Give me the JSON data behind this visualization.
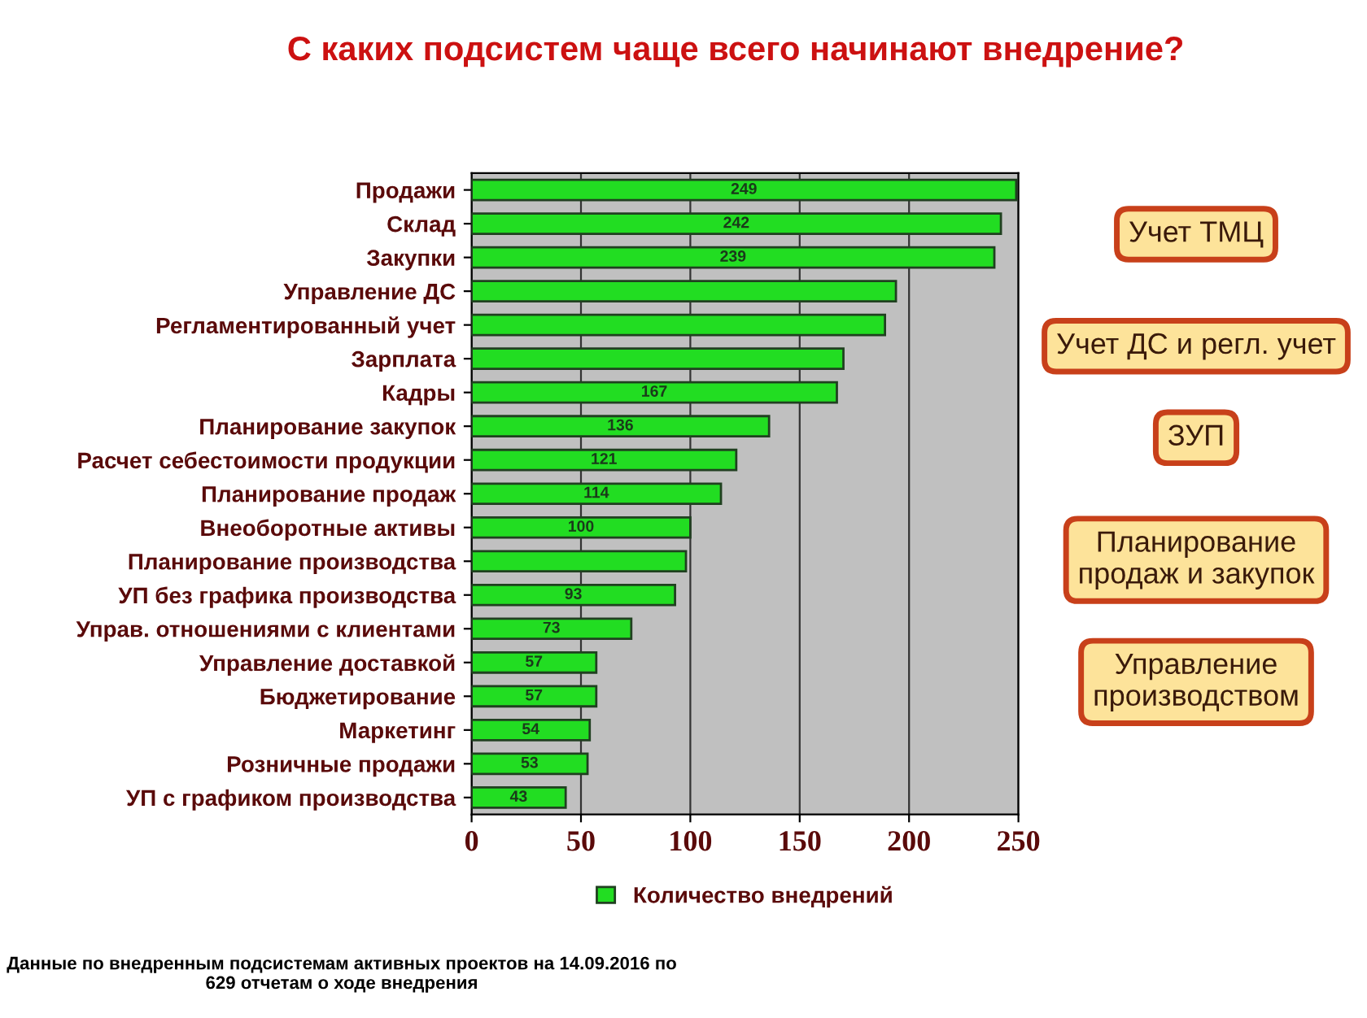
{
  "chart_data": {
    "type": "bar",
    "orientation": "horizontal",
    "title": "С каких подсистем чаще всего начинают внедрение?",
    "categories": [
      "Продажи",
      "Склад",
      "Закупки",
      "Управление ДС",
      "Регламентированный учет",
      "Зарплата",
      "Кадры",
      "Планирование закупок",
      "Расчет себестоимости продукции",
      "Планирование продаж",
      "Внеоборотные активы",
      "Планирование производства",
      "УП без графика производства",
      "Управ. отношениями с клиентами",
      "Управление доставкой",
      "Бюджетирование",
      "Маркетинг",
      "Розничные продажи",
      "УП с графиком производства"
    ],
    "series": [
      {
        "name": "Количество внедрений",
        "color": "#22dd22",
        "values": [
          249,
          242,
          239,
          194,
          189,
          170,
          167,
          136,
          121,
          114,
          100,
          98,
          93,
          73,
          57,
          57,
          54,
          53,
          43
        ],
        "value_labels": [
          "249",
          "242",
          "239",
          null,
          null,
          null,
          "167",
          "136",
          "121",
          "114",
          "100",
          null,
          "93",
          "73",
          "57",
          "57",
          "54",
          "53",
          "43"
        ]
      }
    ],
    "xlim": [
      0,
      250
    ],
    "xticks": [
      0,
      50,
      100,
      150,
      200,
      250
    ],
    "grid": "x",
    "legend": "bottom",
    "annotations": [
      "Учет ТМЦ",
      "Учет ДС и регл. учет",
      "ЗУП",
      "Планирование\nпродаж и закупок",
      "Управление\nпроизводством",
      "Данные по внедренным подсистемам активных проектов на 14.09.2016 по 629 отчетам о ходе внедрения"
    ]
  }
}
